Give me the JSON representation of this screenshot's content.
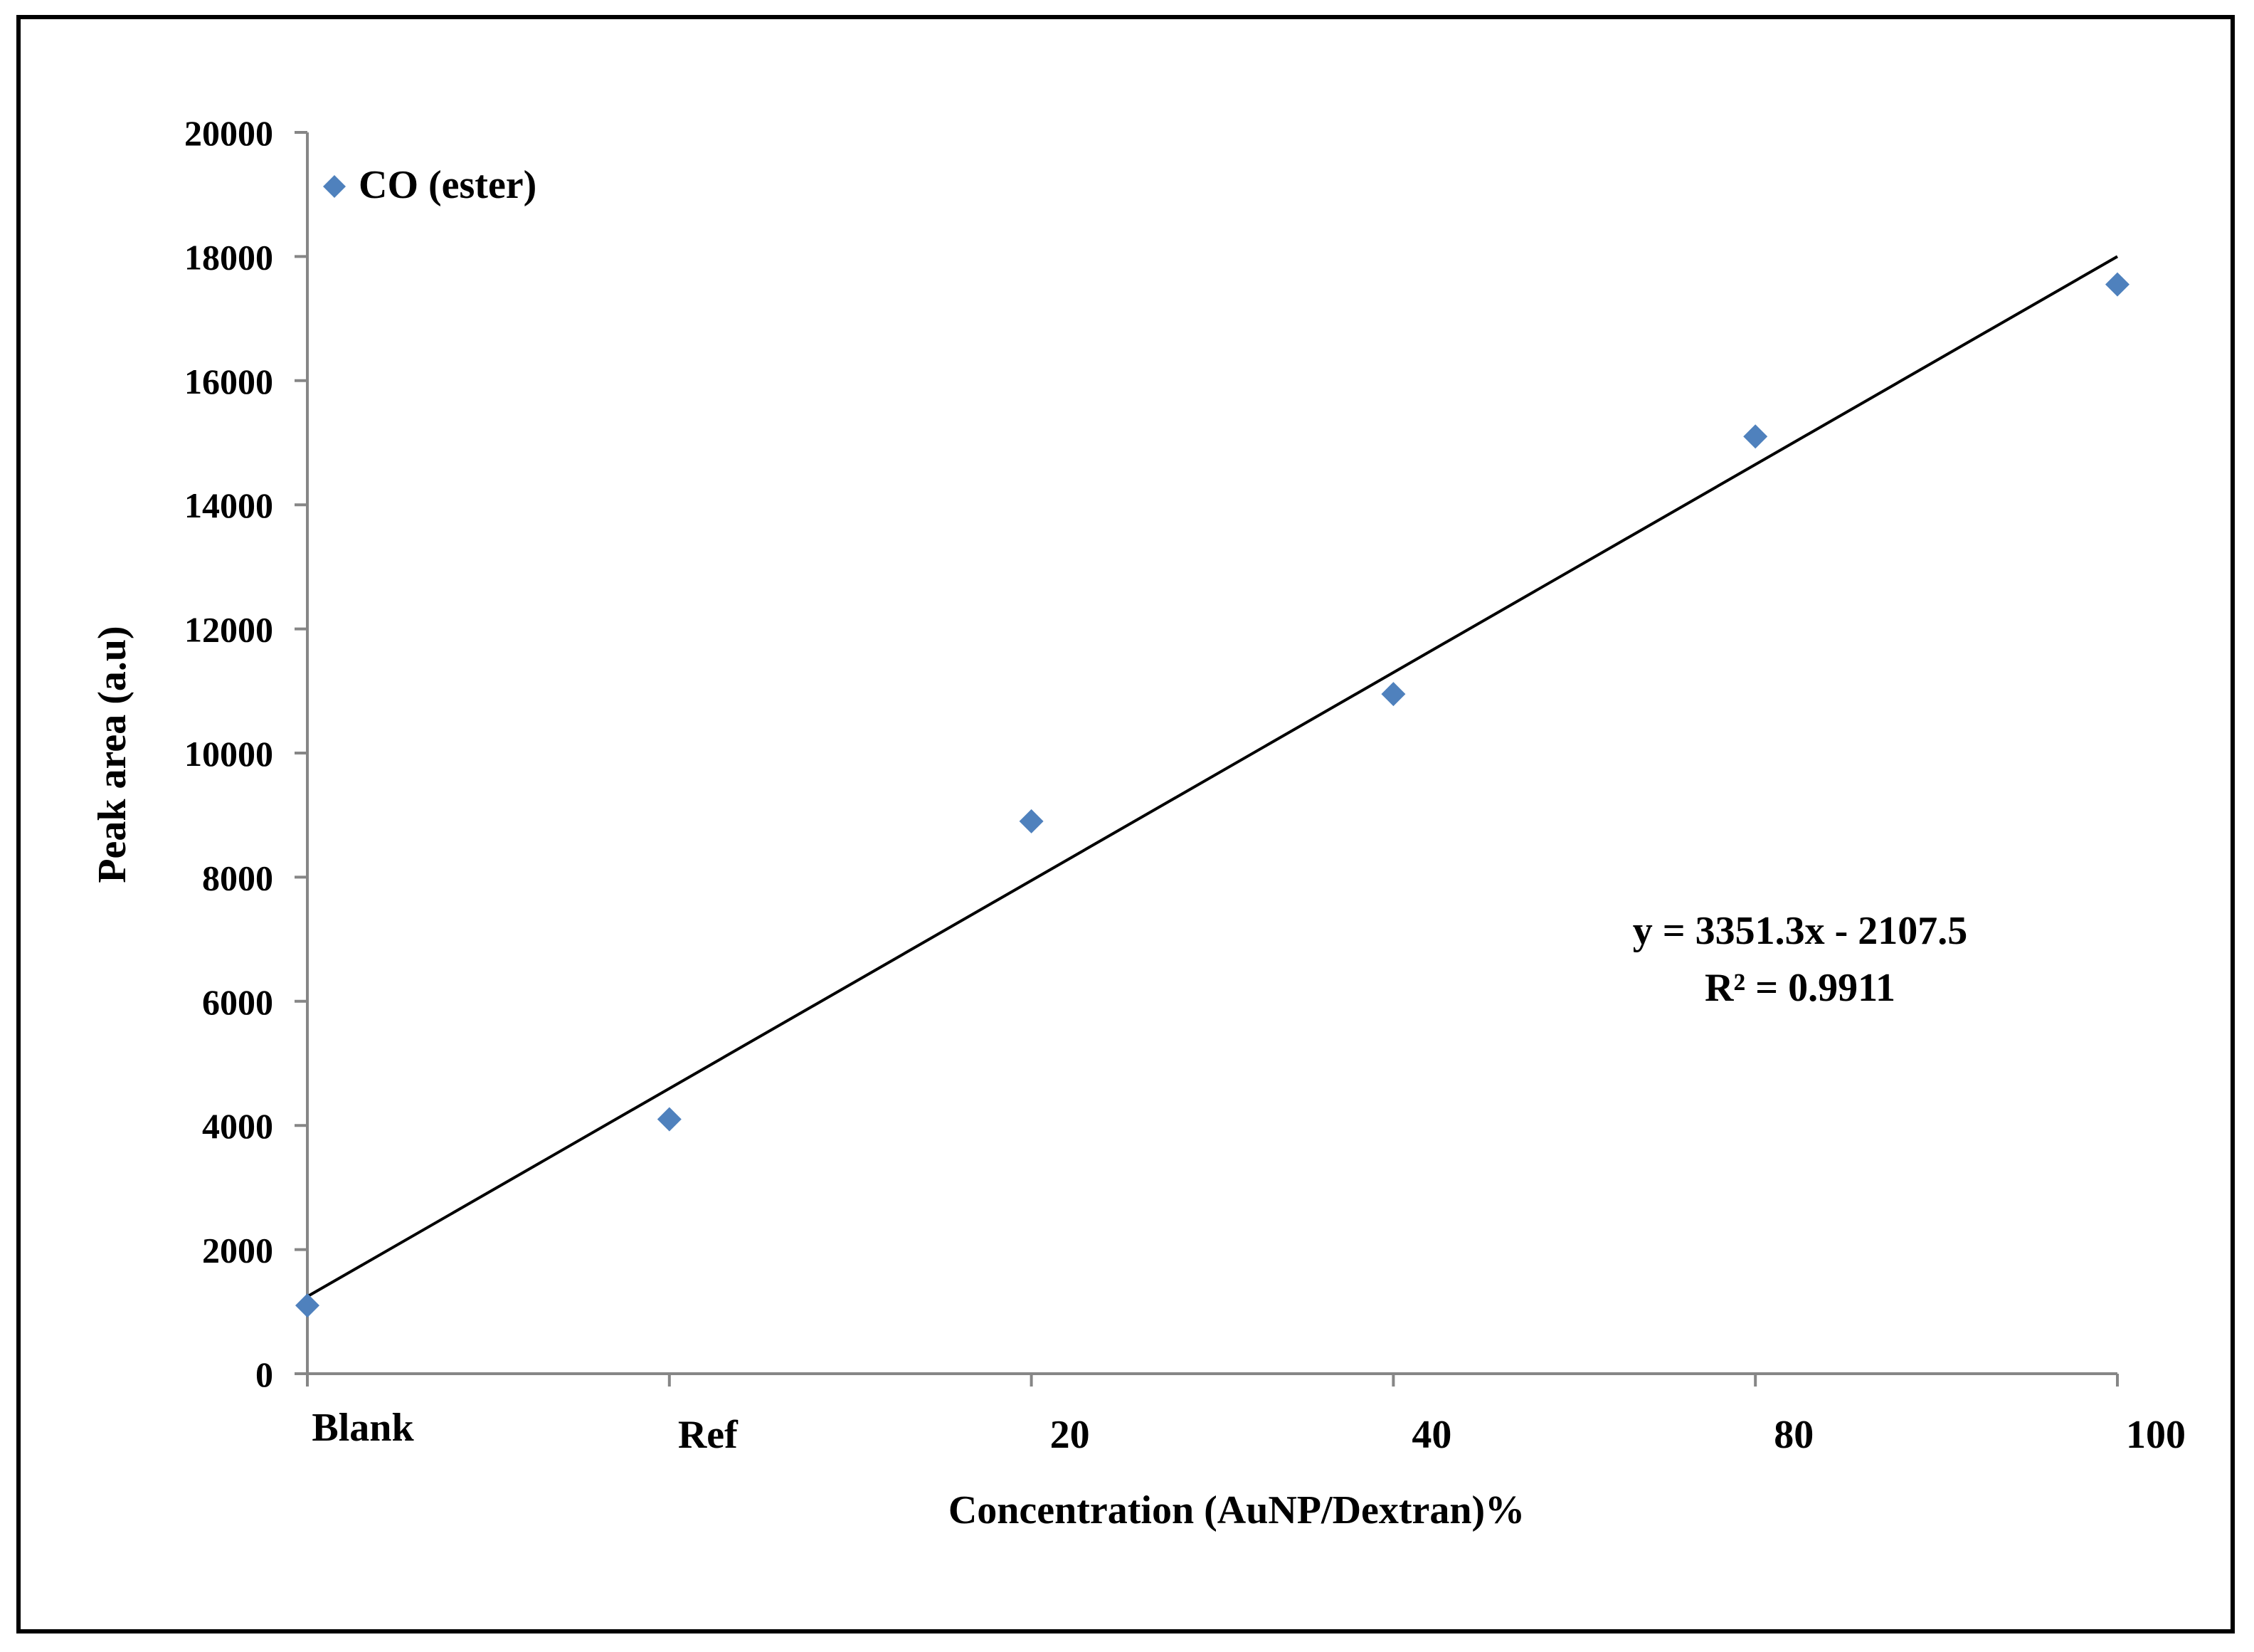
{
  "chart_data": {
    "type": "scatter",
    "title": "",
    "xlabel": "Concentration (AuNP/Dextran)%",
    "ylabel": "Peak area (a.u)",
    "categories": [
      "Blank",
      "Ref",
      "20",
      "40",
      "80",
      "100"
    ],
    "x": [
      1,
      2,
      3,
      4,
      5,
      6
    ],
    "series": [
      {
        "name": "CO (ester)",
        "marker": "diamond",
        "color": "#4f81bd",
        "values": [
          1100,
          4100,
          8900,
          10950,
          15100,
          17550
        ]
      }
    ],
    "trendline": {
      "type": "linear",
      "slope": 3351.3,
      "intercept": -2107.5,
      "equation": "y = 3351.3x - 2107.5",
      "r_squared": "R² = 0.9911",
      "color": "#000000"
    },
    "ylim": [
      0,
      20000
    ],
    "yticks": [
      0,
      2000,
      4000,
      6000,
      8000,
      10000,
      12000,
      14000,
      16000,
      18000,
      20000
    ],
    "xlim": [
      1,
      6
    ],
    "grid": false,
    "legend_position": "top-left"
  }
}
